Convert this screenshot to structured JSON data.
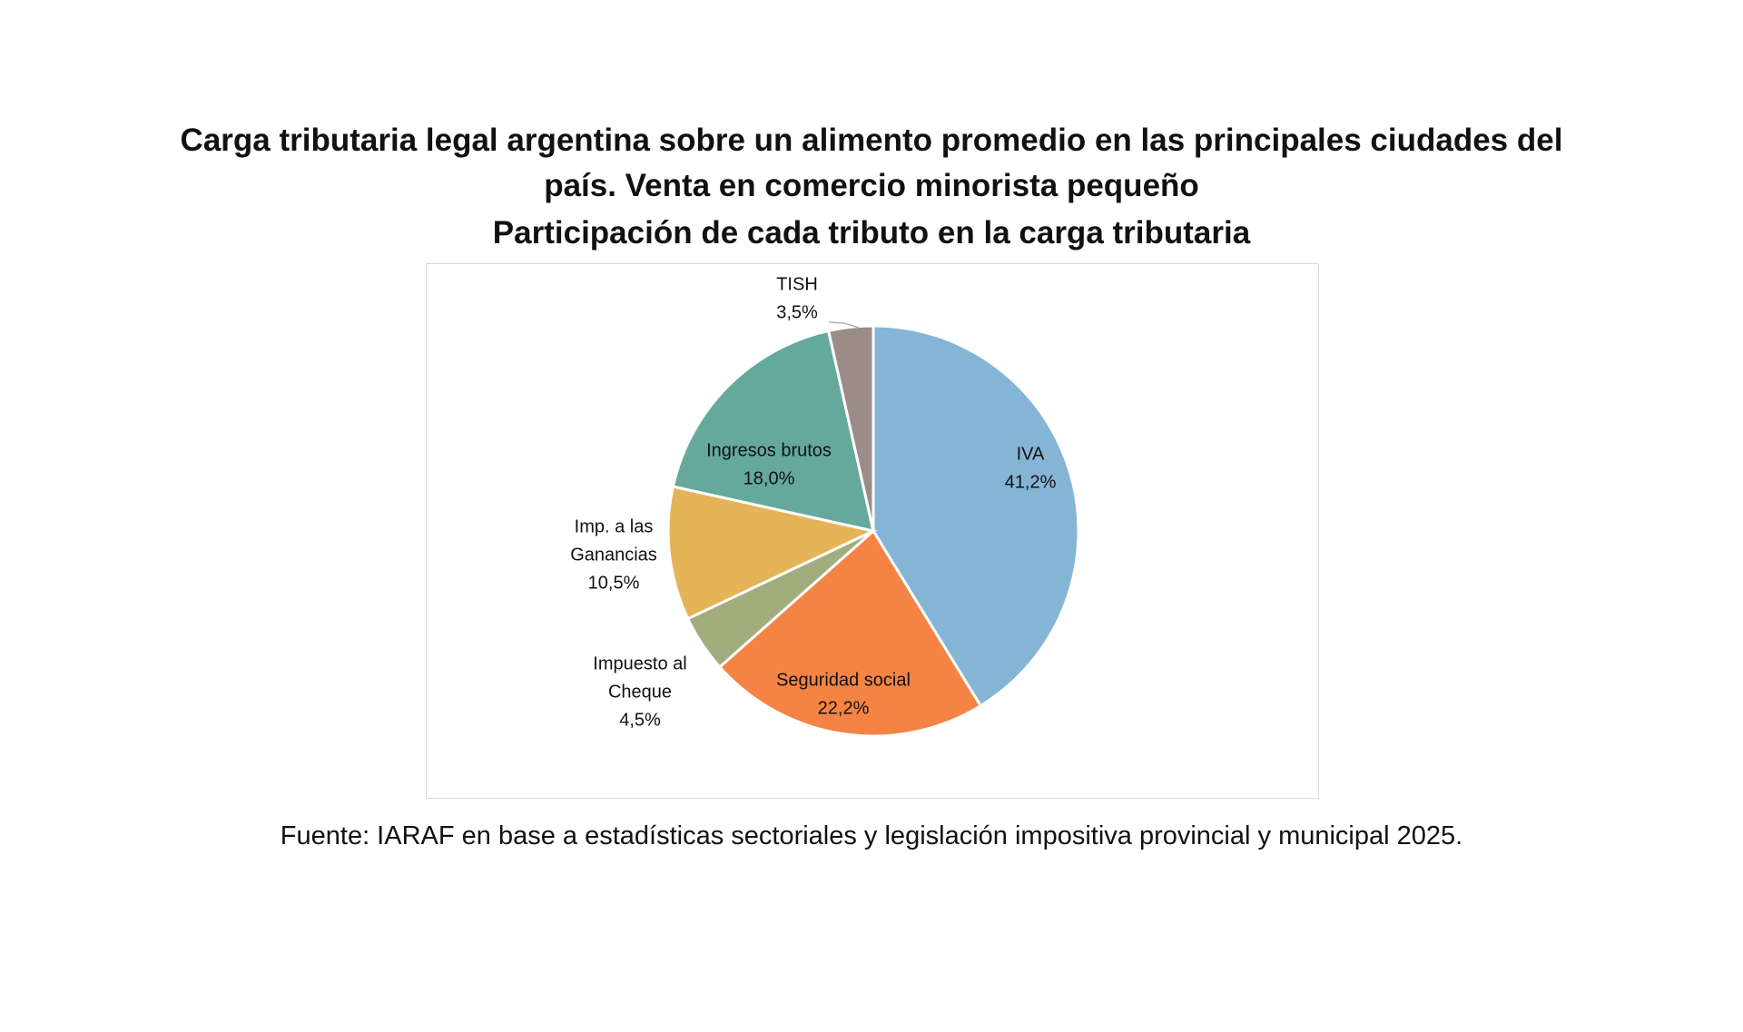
{
  "chart_data": {
    "type": "pie",
    "title_lines": [
      "Carga tributaria legal argentina sobre un alimento promedio en las principales ciudades del",
      "país. Venta en comercio minorista pequeño",
      "Participación de cada tributo en la carga tributaria"
    ],
    "slices": [
      {
        "label": [
          "IVA"
        ],
        "value": 41.2,
        "value_label": "41,2%",
        "color": "#85B5D5"
      },
      {
        "label": [
          "Seguridad social"
        ],
        "value": 22.2,
        "value_label": "22,2%",
        "color": "#F58444"
      },
      {
        "label": [
          "Impuesto al",
          "Cheque"
        ],
        "value": 4.5,
        "value_label": "4,5%",
        "color": "#A2AD7E"
      },
      {
        "label": [
          "Imp. a las",
          "Ganancias"
        ],
        "value": 10.5,
        "value_label": "10,5%",
        "color": "#E5B457"
      },
      {
        "label": [
          "Ingresos brutos"
        ],
        "value": 18.0,
        "value_label": "18,0%",
        "color": "#64A99C"
      },
      {
        "label": [
          "TISH"
        ],
        "value": 3.5,
        "value_label": "3,5%",
        "color": "#9C8C88"
      }
    ],
    "start": "top",
    "direction": "clockwise",
    "legend": "none",
    "source": "Fuente: IARAF en base a estadísticas  sectoriales y legislación impositiva  provincial y municipal 2025."
  }
}
